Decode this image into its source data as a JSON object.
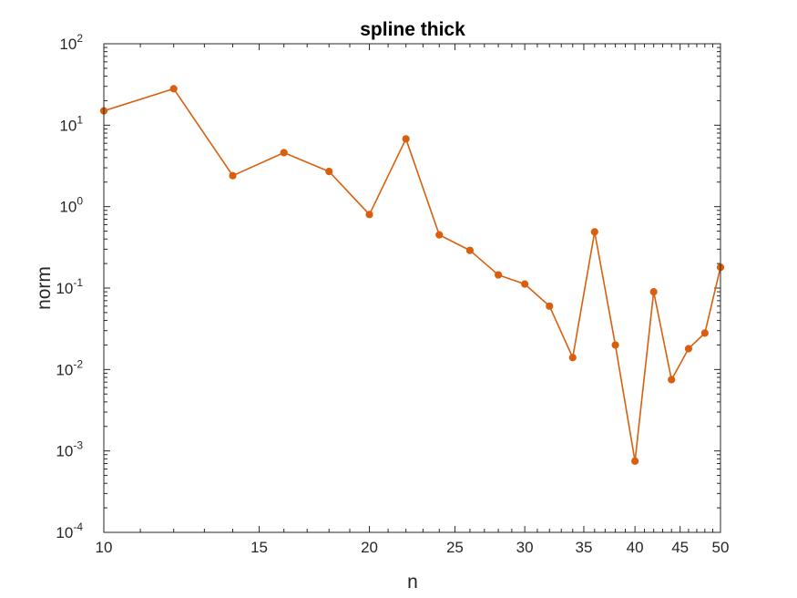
{
  "chart_data": {
    "type": "line",
    "title": "spline thick",
    "xlabel": "n",
    "ylabel": "norm",
    "x_scale": "log",
    "y_scale": "log",
    "xlim": [
      10,
      50
    ],
    "ylim": [
      0.0001,
      100
    ],
    "x_ticks": [
      {
        "value": 10,
        "label": "10"
      },
      {
        "value": 15,
        "label": "15"
      },
      {
        "value": 20,
        "label": "20"
      },
      {
        "value": 25,
        "label": "25"
      },
      {
        "value": 30,
        "label": "30"
      },
      {
        "value": 35,
        "label": "35"
      },
      {
        "value": 40,
        "label": "40"
      },
      {
        "value": 45,
        "label": "45"
      },
      {
        "value": 50,
        "label": "50"
      }
    ],
    "y_ticks": [
      {
        "value": 0.0001,
        "base": "10",
        "exp": "-4"
      },
      {
        "value": 0.001,
        "base": "10",
        "exp": "-3"
      },
      {
        "value": 0.01,
        "base": "10",
        "exp": "-2"
      },
      {
        "value": 0.1,
        "base": "10",
        "exp": "-1"
      },
      {
        "value": 1,
        "base": "10",
        "exp": "0"
      },
      {
        "value": 10,
        "base": "10",
        "exp": "1"
      },
      {
        "value": 100,
        "base": "10",
        "exp": "2"
      }
    ],
    "grid": false,
    "color": "#d95f0e",
    "series": [
      {
        "x": [
          10,
          12,
          14,
          16,
          18,
          20,
          22,
          24,
          26,
          28,
          30,
          32,
          34,
          36,
          38,
          40,
          42,
          44,
          46,
          48,
          50
        ],
        "y": [
          15,
          28,
          2.4,
          4.6,
          2.7,
          0.8,
          6.8,
          0.45,
          0.29,
          0.145,
          0.112,
          0.06,
          0.014,
          0.49,
          0.02,
          0.00075,
          0.09,
          0.0075,
          0.018,
          0.028,
          0.18
        ]
      }
    ]
  }
}
